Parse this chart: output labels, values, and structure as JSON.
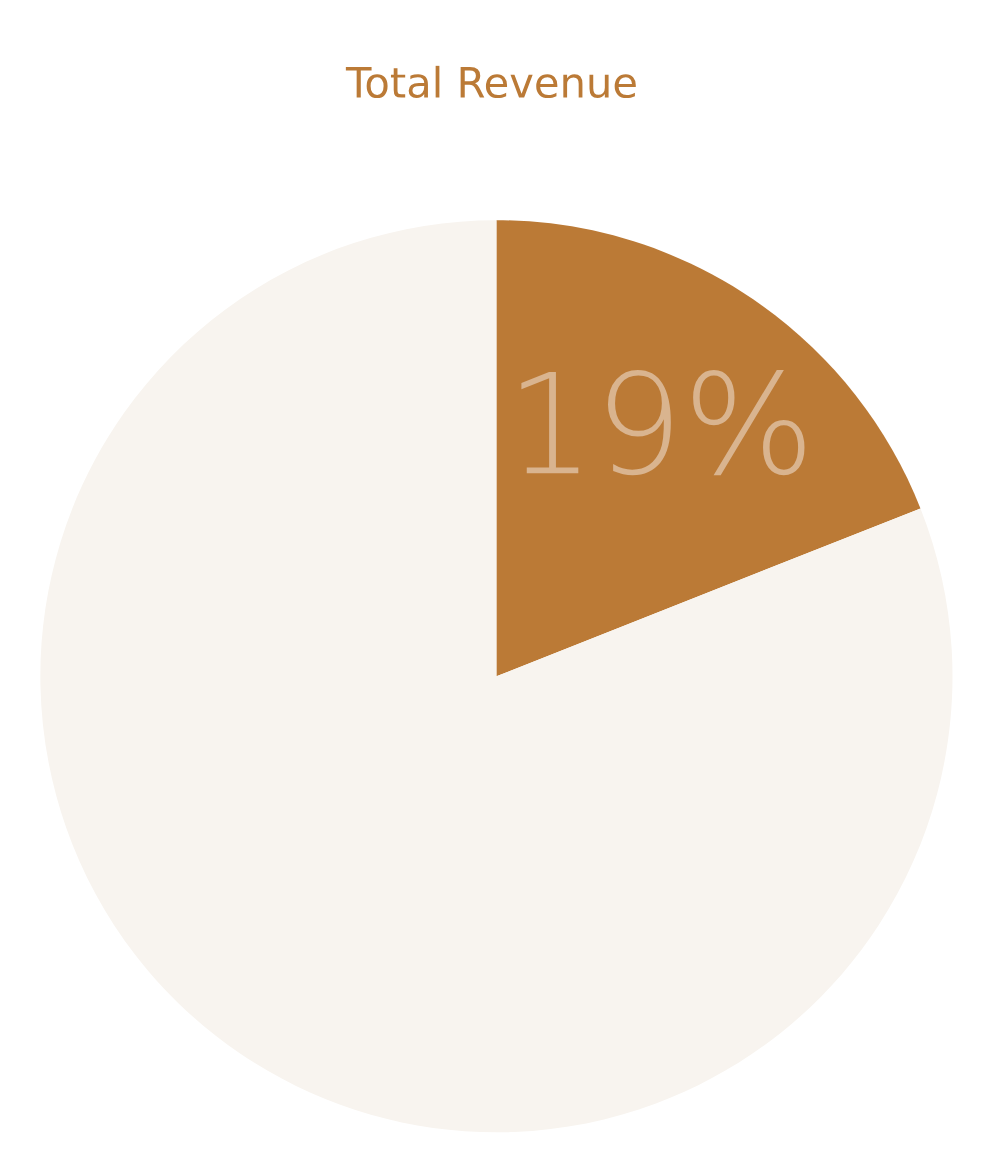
{
  "chart_data": {
    "type": "pie",
    "title": "Total Revenue",
    "categories": [
      null,
      null
    ],
    "values": [
      19,
      81
    ],
    "colors": [
      "#bb7a36",
      "#f8f4ef"
    ],
    "value_labels": [
      "19%",
      null
    ]
  }
}
